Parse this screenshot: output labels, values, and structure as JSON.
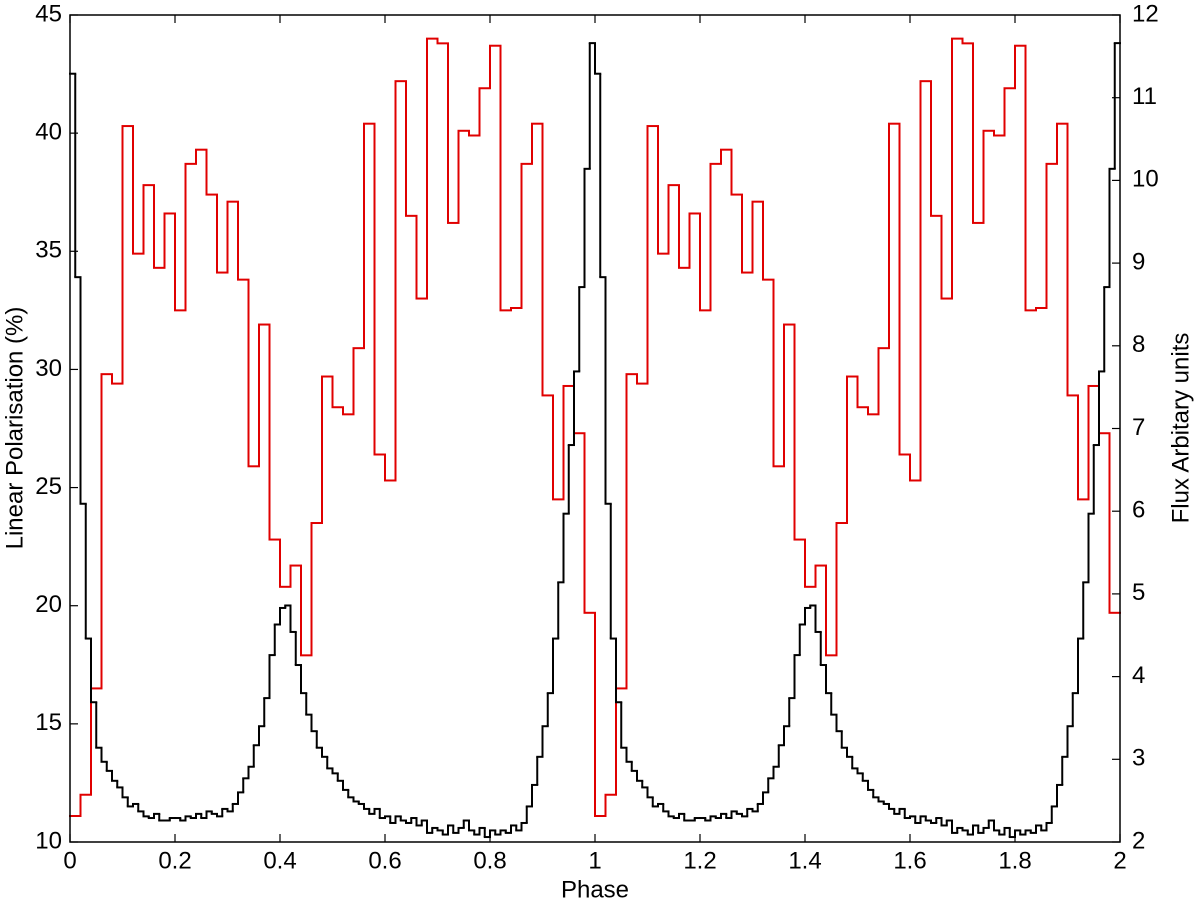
{
  "chart_data": {
    "type": "step",
    "xlabel": "Phase",
    "ylabel": "Linear Polarisation (%)",
    "y2label": "Flux Arbitary units",
    "xlim": [
      0,
      2
    ],
    "xticks": [
      0,
      0.2,
      0.4,
      0.6,
      0.8,
      1,
      1.2,
      1.4,
      1.6,
      1.8,
      2
    ],
    "ylim": [
      10,
      45
    ],
    "yticks": [
      10,
      15,
      20,
      25,
      30,
      35,
      40,
      45
    ],
    "y2lim": [
      2,
      12
    ],
    "y2ticks": [
      2,
      3,
      4,
      5,
      6,
      7,
      8,
      9,
      10,
      11,
      12
    ],
    "series": [
      {
        "color": "#e00000",
        "axis": "y",
        "bins": [
          0,
          0.02,
          0.04,
          0.06,
          0.08,
          0.1,
          0.12,
          0.14,
          0.16,
          0.18,
          0.2,
          0.22,
          0.24,
          0.26,
          0.28,
          0.3,
          0.32,
          0.34,
          0.36,
          0.38,
          0.4,
          0.42,
          0.44,
          0.46,
          0.48,
          0.5,
          0.52,
          0.54,
          0.56,
          0.58,
          0.6,
          0.62,
          0.64,
          0.66,
          0.68,
          0.7,
          0.72,
          0.74,
          0.76,
          0.78,
          0.8,
          0.82,
          0.84,
          0.86,
          0.88,
          0.9,
          0.92,
          0.94,
          0.96,
          0.98,
          1,
          1.02,
          1.04,
          1.06,
          1.08,
          1.1,
          1.12,
          1.14,
          1.16,
          1.18,
          1.2,
          1.22,
          1.24,
          1.26,
          1.28,
          1.3,
          1.32,
          1.34,
          1.36,
          1.38,
          1.4,
          1.42,
          1.44,
          1.46,
          1.48,
          1.5,
          1.52,
          1.54,
          1.56,
          1.58,
          1.6,
          1.62,
          1.64,
          1.66,
          1.68,
          1.7,
          1.72,
          1.74,
          1.76,
          1.78,
          1.8,
          1.82,
          1.84,
          1.86,
          1.88,
          1.9,
          1.92,
          1.94,
          1.96,
          1.98,
          2
        ],
        "values": [
          11.1,
          12.0,
          16.5,
          29.8,
          29.4,
          40.3,
          34.9,
          37.8,
          34.3,
          36.6,
          32.5,
          38.7,
          39.3,
          37.4,
          34.1,
          37.1,
          33.8,
          25.9,
          31.9,
          22.8,
          20.8,
          21.7,
          17.9,
          23.5,
          29.7,
          28.4,
          28.1,
          30.9,
          40.4,
          26.4,
          25.3,
          42.2,
          36.5,
          33.0,
          44.0,
          43.8,
          36.2,
          40.1,
          39.9,
          41.9,
          43.7,
          32.5,
          32.6,
          38.7,
          40.4,
          28.9,
          24.5,
          29.3,
          27.3,
          19.7,
          11.1,
          12.0,
          16.5,
          29.8,
          29.4,
          40.3,
          34.9,
          37.8,
          34.3,
          36.6,
          32.5,
          38.7,
          39.3,
          37.4,
          34.1,
          37.1,
          33.8,
          25.9,
          31.9,
          22.8,
          20.8,
          21.7,
          17.9,
          23.5,
          29.7,
          28.4,
          28.1,
          30.9,
          40.4,
          26.4,
          25.3,
          42.2,
          36.5,
          33.0,
          44.0,
          43.8,
          36.2,
          40.1,
          39.9,
          41.9,
          43.7,
          32.5,
          32.6,
          38.7,
          40.4,
          28.9,
          24.5,
          29.3,
          27.3,
          19.7
        ]
      },
      {
        "color": "#000000",
        "axis": "y2",
        "bins": [
          0,
          0.01,
          0.02,
          0.03,
          0.04,
          0.05,
          0.06,
          0.07,
          0.08,
          0.09,
          0.1,
          0.11,
          0.12,
          0.13,
          0.14,
          0.15,
          0.16,
          0.17,
          0.18,
          0.19,
          0.2,
          0.21,
          0.22,
          0.23,
          0.24,
          0.25,
          0.26,
          0.27,
          0.28,
          0.29,
          0.3,
          0.31,
          0.32,
          0.33,
          0.34,
          0.35,
          0.36,
          0.37,
          0.38,
          0.39,
          0.4,
          0.41,
          0.42,
          0.43,
          0.44,
          0.45,
          0.46,
          0.47,
          0.48,
          0.49,
          0.5,
          0.51,
          0.52,
          0.53,
          0.54,
          0.55,
          0.56,
          0.57,
          0.58,
          0.59,
          0.6,
          0.61,
          0.62,
          0.63,
          0.64,
          0.65,
          0.66,
          0.67,
          0.68,
          0.69,
          0.7,
          0.71,
          0.72,
          0.73,
          0.74,
          0.75,
          0.76,
          0.77,
          0.78,
          0.79,
          0.8,
          0.81,
          0.82,
          0.83,
          0.84,
          0.85,
          0.86,
          0.87,
          0.88,
          0.89,
          0.9,
          0.91,
          0.92,
          0.93,
          0.94,
          0.95,
          0.96,
          0.97,
          0.98,
          0.99,
          1,
          1.01,
          1.02,
          1.03,
          1.04,
          1.05,
          1.06,
          1.07,
          1.08,
          1.09,
          1.1,
          1.11,
          1.12,
          1.13,
          1.14,
          1.15,
          1.16,
          1.17,
          1.18,
          1.19,
          1.2,
          1.21,
          1.22,
          1.23,
          1.24,
          1.25,
          1.26,
          1.27,
          1.28,
          1.29,
          1.3,
          1.31,
          1.32,
          1.33,
          1.34,
          1.35,
          1.36,
          1.37,
          1.38,
          1.39,
          1.4,
          1.41,
          1.42,
          1.43,
          1.44,
          1.45,
          1.46,
          1.47,
          1.48,
          1.49,
          1.5,
          1.51,
          1.52,
          1.53,
          1.54,
          1.55,
          1.56,
          1.57,
          1.58,
          1.59,
          1.6,
          1.61,
          1.62,
          1.63,
          1.64,
          1.65,
          1.66,
          1.67,
          1.68,
          1.69,
          1.7,
          1.71,
          1.72,
          1.73,
          1.74,
          1.75,
          1.76,
          1.77,
          1.78,
          1.79,
          1.8,
          1.81,
          1.82,
          1.83,
          1.84,
          1.85,
          1.86,
          1.87,
          1.88,
          1.89,
          1.9,
          1.91,
          1.92,
          1.93,
          1.94,
          1.95,
          1.96,
          1.97,
          1.98,
          1.99,
          2
        ],
        "values": [
          11.29,
          8.83,
          6.09,
          4.46,
          3.69,
          3.14,
          2.97,
          2.86,
          2.74,
          2.66,
          2.54,
          2.43,
          2.46,
          2.37,
          2.31,
          2.29,
          2.34,
          2.26,
          2.26,
          2.29,
          2.29,
          2.26,
          2.31,
          2.29,
          2.34,
          2.29,
          2.37,
          2.34,
          2.31,
          2.4,
          2.37,
          2.46,
          2.6,
          2.77,
          2.91,
          3.17,
          3.4,
          3.74,
          4.26,
          4.63,
          4.83,
          4.86,
          4.54,
          4.14,
          3.8,
          3.54,
          3.34,
          3.14,
          3.03,
          2.89,
          2.83,
          2.74,
          2.63,
          2.54,
          2.49,
          2.46,
          2.4,
          2.34,
          2.4,
          2.29,
          2.31,
          2.23,
          2.31,
          2.26,
          2.23,
          2.29,
          2.2,
          2.26,
          2.11,
          2.17,
          2.14,
          2.09,
          2.2,
          2.11,
          2.17,
          2.26,
          2.14,
          2.09,
          2.17,
          2.06,
          2.14,
          2.09,
          2.14,
          2.11,
          2.2,
          2.14,
          2.23,
          2.43,
          2.69,
          3.03,
          3.4,
          3.8,
          4.46,
          5.14,
          5.97,
          6.8,
          7.69,
          8.71,
          10.14,
          11.66,
          11.29,
          8.83,
          6.09,
          4.46,
          3.69,
          3.14,
          2.97,
          2.86,
          2.74,
          2.66,
          2.54,
          2.43,
          2.46,
          2.37,
          2.31,
          2.29,
          2.34,
          2.26,
          2.26,
          2.29,
          2.29,
          2.26,
          2.31,
          2.29,
          2.34,
          2.29,
          2.37,
          2.34,
          2.31,
          2.4,
          2.37,
          2.46,
          2.6,
          2.77,
          2.91,
          3.17,
          3.4,
          3.74,
          4.26,
          4.63,
          4.83,
          4.86,
          4.54,
          4.14,
          3.8,
          3.54,
          3.34,
          3.14,
          3.03,
          2.89,
          2.83,
          2.74,
          2.63,
          2.54,
          2.49,
          2.46,
          2.4,
          2.34,
          2.4,
          2.29,
          2.31,
          2.23,
          2.31,
          2.26,
          2.23,
          2.29,
          2.2,
          2.26,
          2.11,
          2.17,
          2.14,
          2.09,
          2.2,
          2.11,
          2.17,
          2.26,
          2.14,
          2.09,
          2.17,
          2.06,
          2.14,
          2.09,
          2.14,
          2.11,
          2.2,
          2.14,
          2.23,
          2.43,
          2.69,
          3.03,
          3.4,
          3.8,
          4.46,
          5.14,
          5.97,
          6.8,
          7.69,
          8.71,
          10.14,
          11.66
        ]
      }
    ]
  }
}
